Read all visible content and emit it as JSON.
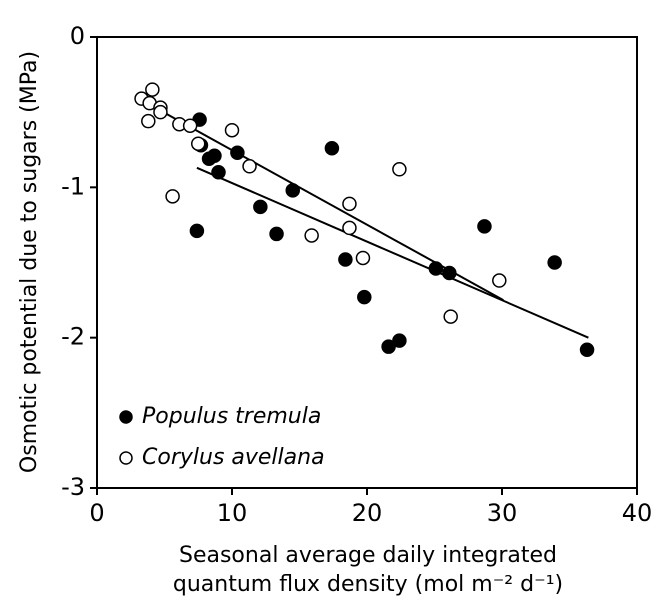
{
  "chart_data": {
    "type": "scatter",
    "xlabel": [
      "Seasonal average daily integrated",
      "quantum flux density (mol m⁻² d⁻¹)"
    ],
    "ylabel": "Osmotic potential due to sugars (MPa)",
    "xlim": [
      0,
      40
    ],
    "xticks": [
      0,
      10,
      20,
      30,
      40
    ],
    "ylim": [
      -3,
      0
    ],
    "yticks": [
      -3,
      -2,
      -1,
      0
    ],
    "series": [
      {
        "name": "Populus tremula",
        "color": "#000000",
        "filled": true,
        "x": [
          7.6,
          7.7,
          8.3,
          8.7,
          9.0,
          7.4,
          10.4,
          12.1,
          13.3,
          14.5,
          17.4,
          18.4,
          19.8,
          21.6,
          22.4,
          25.1,
          26.1,
          28.7,
          33.9,
          36.3
        ],
        "values": [
          -0.55,
          -0.72,
          -0.81,
          -0.79,
          -0.9,
          -1.29,
          -0.77,
          -1.13,
          -1.31,
          -1.02,
          -0.74,
          -1.48,
          -1.73,
          -2.06,
          -2.02,
          -1.54,
          -1.57,
          -1.26,
          -1.5,
          -2.08
        ],
        "trendline": {
          "x": [
            7.4,
            36.4
          ],
          "values": [
            -0.87,
            -2.0
          ]
        }
      },
      {
        "name": "Corylus avellana",
        "color": "#000000",
        "filled": false,
        "x": [
          3.3,
          4.1,
          3.9,
          3.8,
          4.7,
          4.7,
          6.1,
          6.9,
          7.5,
          5.6,
          10.0,
          11.3,
          15.9,
          18.7,
          18.7,
          19.7,
          22.4,
          26.2,
          29.8
        ],
        "values": [
          -0.41,
          -0.35,
          -0.44,
          -0.56,
          -0.47,
          -0.5,
          -0.58,
          -0.59,
          -0.71,
          -1.06,
          -0.62,
          -0.86,
          -1.32,
          -1.11,
          -1.27,
          -1.47,
          -0.88,
          -1.86,
          -1.62
        ],
        "trendline": {
          "x": [
            3.3,
            30.1
          ],
          "values": [
            -0.42,
            -1.75
          ]
        }
      }
    ]
  }
}
